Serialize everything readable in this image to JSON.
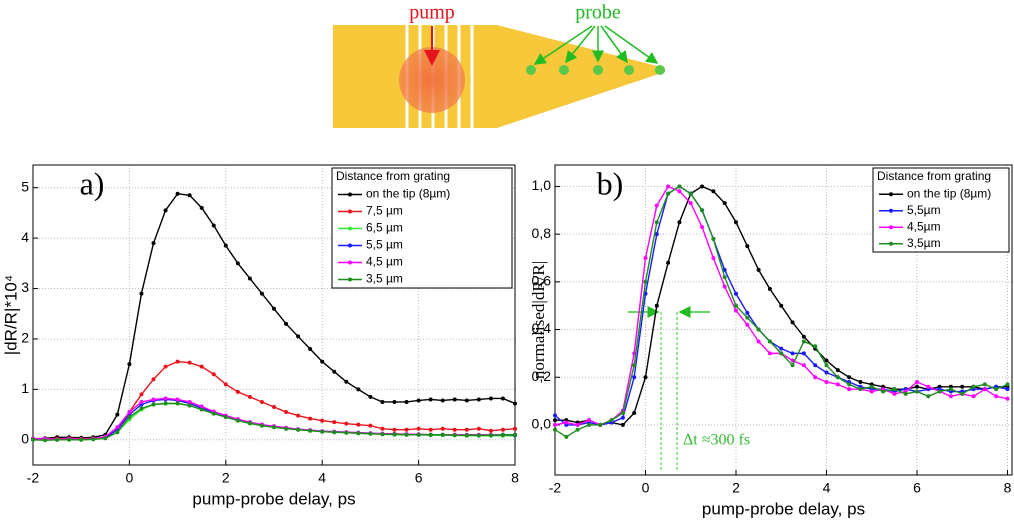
{
  "schematic": {
    "pump_label": "pump",
    "probe_label": "probe"
  },
  "chart_data": [
    {
      "type": "line",
      "panel_label": "a)",
      "xlabel": "pump-probe delay, ps",
      "ylabel": "|dR/R|*10⁴",
      "xlim": [
        -2,
        8
      ],
      "ylim": [
        -0.5,
        5.45
      ],
      "xticks": [
        -2,
        0,
        2,
        4,
        6,
        8
      ],
      "yticks": [
        0,
        1,
        2,
        3,
        4,
        5
      ],
      "grid": true,
      "legend_title": "Distance from grating",
      "legend_corner": "upper right",
      "x": [
        -2,
        -1.75,
        -1.5,
        -1.25,
        -1,
        -0.75,
        -0.5,
        -0.25,
        0,
        0.25,
        0.5,
        0.75,
        1,
        1.25,
        1.5,
        1.75,
        2,
        2.25,
        2.5,
        2.75,
        3,
        3.25,
        3.5,
        3.75,
        4,
        4.25,
        4.5,
        4.75,
        5,
        5.25,
        5.5,
        5.75,
        6,
        6.25,
        6.5,
        6.75,
        7,
        7.25,
        7.5,
        7.75,
        8
      ],
      "series": [
        {
          "name": "on the tip (8µm)",
          "color": "#000000",
          "values": [
            0.02,
            0.03,
            0.05,
            0.05,
            0.04,
            0.05,
            0.1,
            0.5,
            1.5,
            2.9,
            3.9,
            4.55,
            4.88,
            4.85,
            4.6,
            4.25,
            3.85,
            3.5,
            3.2,
            2.9,
            2.6,
            2.3,
            2.05,
            1.8,
            1.55,
            1.35,
            1.15,
            1.0,
            0.85,
            0.75,
            0.75,
            0.75,
            0.78,
            0.8,
            0.78,
            0.8,
            0.78,
            0.8,
            0.82,
            0.82,
            0.72
          ]
        },
        {
          "name": "7,5  µm",
          "color": "#e8141c",
          "values": [
            0.0,
            0.02,
            0.02,
            0.03,
            0.02,
            0.03,
            0.05,
            0.2,
            0.55,
            0.9,
            1.2,
            1.45,
            1.55,
            1.53,
            1.45,
            1.3,
            1.1,
            0.95,
            0.85,
            0.75,
            0.65,
            0.55,
            0.48,
            0.42,
            0.38,
            0.35,
            0.32,
            0.3,
            0.28,
            0.22,
            0.2,
            0.2,
            0.22,
            0.2,
            0.22,
            0.2,
            0.2,
            0.22,
            0.18,
            0.2,
            0.22
          ]
        },
        {
          "name": "6,5  µm",
          "color": "#33ee33",
          "values": [
            0.0,
            0.0,
            0.0,
            0.01,
            0.0,
            0.01,
            0.03,
            0.15,
            0.4,
            0.6,
            0.7,
            0.72,
            0.72,
            0.68,
            0.6,
            0.52,
            0.45,
            0.38,
            0.32,
            0.28,
            0.25,
            0.22,
            0.2,
            0.18,
            0.16,
            0.15,
            0.14,
            0.13,
            0.12,
            0.11,
            0.1,
            0.1,
            0.1,
            0.09,
            0.09,
            0.09,
            0.08,
            0.08,
            0.08,
            0.08,
            0.08
          ]
        },
        {
          "name": "5,5  µm",
          "color": "#1a1aff",
          "values": [
            0.01,
            0.01,
            0.0,
            0.01,
            0.01,
            0.02,
            0.05,
            0.2,
            0.5,
            0.7,
            0.78,
            0.8,
            0.78,
            0.72,
            0.63,
            0.55,
            0.47,
            0.4,
            0.34,
            0.3,
            0.26,
            0.23,
            0.21,
            0.19,
            0.17,
            0.16,
            0.15,
            0.14,
            0.13,
            0.12,
            0.11,
            0.11,
            0.1,
            0.1,
            0.1,
            0.1,
            0.09,
            0.09,
            0.09,
            0.1,
            0.09
          ]
        },
        {
          "name": "4,5  µm",
          "color": "#ff00ff",
          "values": [
            0.02,
            0.02,
            0.01,
            0.02,
            0.01,
            0.02,
            0.06,
            0.25,
            0.55,
            0.75,
            0.8,
            0.82,
            0.8,
            0.75,
            0.66,
            0.56,
            0.48,
            0.41,
            0.35,
            0.3,
            0.27,
            0.24,
            0.21,
            0.19,
            0.17,
            0.16,
            0.15,
            0.14,
            0.13,
            0.12,
            0.12,
            0.11,
            0.11,
            0.1,
            0.1,
            0.1,
            0.1,
            0.1,
            0.1,
            0.1,
            0.1
          ]
        },
        {
          "name": "3,5  µm",
          "color": "#1e8c1e",
          "values": [
            0.0,
            -0.01,
            0.0,
            0.0,
            0.0,
            0.01,
            0.03,
            0.15,
            0.45,
            0.62,
            0.7,
            0.72,
            0.72,
            0.68,
            0.6,
            0.52,
            0.45,
            0.38,
            0.33,
            0.28,
            0.25,
            0.22,
            0.2,
            0.18,
            0.16,
            0.15,
            0.14,
            0.13,
            0.12,
            0.11,
            0.11,
            0.1,
            0.1,
            0.1,
            0.1,
            0.09,
            0.09,
            0.09,
            0.09,
            0.1,
            0.1
          ]
        }
      ]
    },
    {
      "type": "line",
      "panel_label": "b)",
      "xlabel": "pump-probe delay, ps",
      "ylabel": "normalised|dR/R|",
      "annotation": "Δt ≈300 fs",
      "xlim": [
        -2,
        8.1
      ],
      "ylim": [
        -0.21,
        1.09
      ],
      "xticks": [
        -2,
        0,
        2,
        4,
        6,
        8
      ],
      "yticks": [
        {
          "value": 0,
          "label": "0,0"
        },
        {
          "value": 0.2,
          "label": "0,2"
        },
        {
          "value": 0.4,
          "label": "0,4"
        },
        {
          "value": 0.6,
          "label": "0,6"
        },
        {
          "value": 0.8,
          "label": "0,8"
        },
        {
          "value": 1,
          "label": "1,0"
        }
      ],
      "grid": true,
      "legend_title": "Distance from grating",
      "legend_corner": "upper right",
      "x": [
        -2,
        -1.75,
        -1.5,
        -1.25,
        -1,
        -0.75,
        -0.5,
        -0.25,
        0,
        0.25,
        0.5,
        0.75,
        1,
        1.25,
        1.5,
        1.75,
        2,
        2.25,
        2.5,
        2.75,
        3,
        3.25,
        3.5,
        3.75,
        4,
        4.25,
        4.5,
        4.75,
        5,
        5.25,
        5.5,
        5.75,
        6,
        6.25,
        6.5,
        6.75,
        7,
        7.25,
        7.5,
        7.75,
        8
      ],
      "series": [
        {
          "name": "on the tip (8µm)",
          "color": "#000000",
          "values": [
            0.02,
            0.02,
            0.01,
            0.02,
            0.0,
            0.01,
            0.0,
            0.05,
            0.2,
            0.5,
            0.68,
            0.85,
            0.97,
            1.0,
            0.98,
            0.93,
            0.85,
            0.75,
            0.65,
            0.57,
            0.5,
            0.43,
            0.37,
            0.32,
            0.27,
            0.23,
            0.2,
            0.18,
            0.17,
            0.16,
            0.15,
            0.15,
            0.16,
            0.15,
            0.16,
            0.16,
            0.16,
            0.16,
            0.15,
            0.16,
            0.16
          ]
        },
        {
          "name": "5,5µm",
          "color": "#1a1aff",
          "values": [
            0.04,
            0.0,
            0.0,
            0.01,
            0.0,
            0.01,
            0.03,
            0.2,
            0.55,
            0.8,
            0.97,
            1.0,
            0.97,
            0.9,
            0.78,
            0.65,
            0.55,
            0.47,
            0.4,
            0.35,
            0.32,
            0.3,
            0.3,
            0.25,
            0.22,
            0.2,
            0.18,
            0.16,
            0.15,
            0.15,
            0.14,
            0.15,
            0.14,
            0.15,
            0.15,
            0.14,
            0.14,
            0.15,
            0.15,
            0.16,
            0.15
          ]
        },
        {
          "name": "4,5µm",
          "color": "#ff00ff",
          "values": [
            0.0,
            0.01,
            0.0,
            0.02,
            0.0,
            0.02,
            0.06,
            0.3,
            0.7,
            0.92,
            1.0,
            0.98,
            0.93,
            0.83,
            0.7,
            0.58,
            0.48,
            0.42,
            0.35,
            0.3,
            0.3,
            0.27,
            0.25,
            0.2,
            0.18,
            0.17,
            0.15,
            0.15,
            0.14,
            0.15,
            0.13,
            0.14,
            0.18,
            0.16,
            0.14,
            0.12,
            0.13,
            0.12,
            0.15,
            0.12,
            0.11
          ]
        },
        {
          "name": "3,5µm",
          "color": "#1e8c1e",
          "values": [
            -0.02,
            -0.05,
            -0.02,
            0.0,
            0.0,
            0.02,
            0.05,
            0.25,
            0.6,
            0.85,
            0.97,
            1.0,
            0.97,
            0.9,
            0.78,
            0.62,
            0.5,
            0.45,
            0.4,
            0.35,
            0.3,
            0.25,
            0.35,
            0.33,
            0.25,
            0.2,
            0.17,
            0.15,
            0.16,
            0.14,
            0.15,
            0.13,
            0.14,
            0.12,
            0.14,
            0.15,
            0.13,
            0.16,
            0.17,
            0.15,
            0.17
          ]
        }
      ]
    }
  ]
}
